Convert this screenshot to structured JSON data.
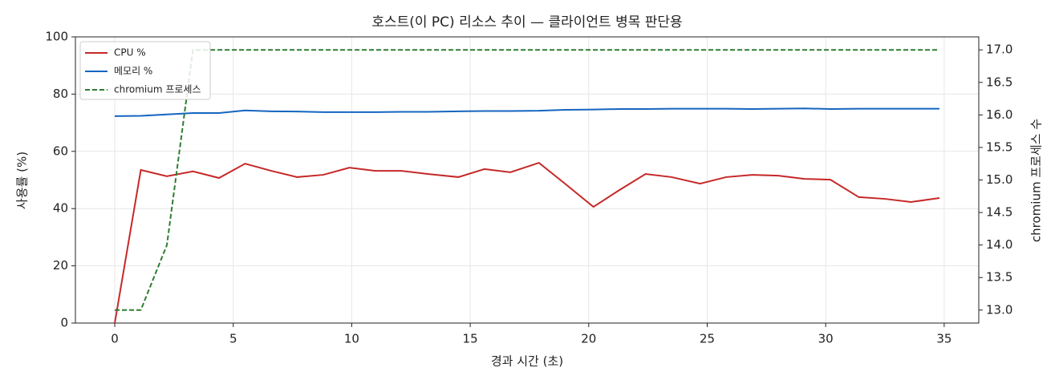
{
  "chart_data": {
    "type": "line",
    "title": "호스트(이 PC) 리소스 추이 — 클라이언트 병목 판단용",
    "x_label": "경과 시간 (초)",
    "y_label": "사용률 (%)",
    "y2_label": "chromium 프로세스 수",
    "x": [
      0,
      1.1,
      2.2,
      3.3,
      4.4,
      5.5,
      6.6,
      7.7,
      8.8,
      9.9,
      11.0,
      12.1,
      13.2,
      14.5,
      15.6,
      16.7,
      17.9,
      19.0,
      20.2,
      21.3,
      22.4,
      23.5,
      24.7,
      25.8,
      26.9,
      28.0,
      29.1,
      30.2,
      31.4,
      32.5,
      33.6,
      34.8
    ],
    "series": [
      {
        "name": "CPU %",
        "color": "#c62828",
        "style": "solid",
        "values": [
          0,
          53.5,
          51.3,
          53,
          50.7,
          55.7,
          53.2,
          51,
          51.8,
          54.3,
          53.2,
          53.2,
          52.1,
          51,
          53.8,
          52.7,
          56,
          48.7,
          40.6,
          46.5,
          52.1,
          51,
          48.7,
          51,
          51.8,
          51.5,
          50.4,
          50.1,
          44,
          43.4,
          42.3,
          43.7
        ]
      },
      {
        "name": "메모리 %",
        "color": "#1565c0",
        "style": "solid",
        "values": [
          72.3,
          72.4,
          72.9,
          73.4,
          73.4,
          74.3,
          74,
          73.9,
          73.7,
          73.7,
          73.7,
          73.8,
          73.8,
          74,
          74.1,
          74.1,
          74.2,
          74.5,
          74.6,
          74.8,
          74.8,
          74.9,
          74.9,
          74.9,
          74.8,
          74.9,
          75,
          74.8,
          74.9,
          74.9,
          74.9,
          74.9
        ]
      },
      {
        "name": "chromium 프로세스",
        "color": "#2e7d32",
        "style": "dashed",
        "axis": "y2",
        "values": [
          13,
          13,
          14,
          17,
          17,
          17,
          17,
          17,
          17,
          17,
          17,
          17,
          17,
          17,
          17,
          17,
          17,
          17,
          17,
          17,
          17,
          17,
          17,
          17,
          17,
          17,
          17,
          17,
          17,
          17,
          17,
          17
        ]
      }
    ],
    "xlim": [
      -1.66,
      36.46
    ],
    "xticks": [
      0,
      5,
      10,
      15,
      20,
      25,
      30,
      35
    ],
    "ylim": [
      0,
      100
    ],
    "yticks": [
      0,
      20,
      40,
      60,
      80,
      100
    ],
    "y2lim": [
      12.8,
      17.2
    ],
    "y2ticks": [
      {
        "value": 13,
        "label": "13.0"
      },
      {
        "value": 13.5,
        "label": "13.5"
      },
      {
        "value": 14,
        "label": "14.0"
      },
      {
        "value": 14.5,
        "label": "14.5"
      },
      {
        "value": 15,
        "label": "15.0"
      },
      {
        "value": 15.5,
        "label": "15.5"
      },
      {
        "value": 16,
        "label": "16.0"
      },
      {
        "value": 16.5,
        "label": "16.5"
      },
      {
        "value": 17,
        "label": "17.0"
      }
    ],
    "grid": true,
    "legend": "upper-left"
  }
}
